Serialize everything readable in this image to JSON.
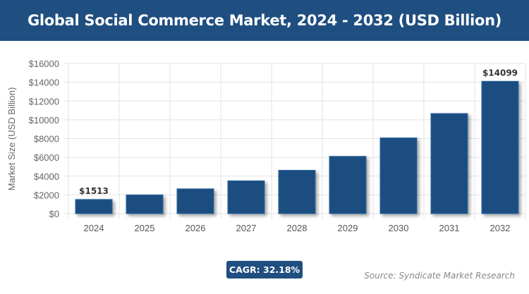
{
  "title": "Global Social Commerce Market, 2024 - 2032 (USD Billion)",
  "cagr_label": "CAGR: 32.18%",
  "source": "Source: Syndicate Market Research",
  "colors": {
    "bar": "#1f4e80",
    "header": "#1f4e80"
  },
  "chart_data": {
    "type": "bar",
    "title": "Global Social Commerce Market, 2024 - 2032 (USD Billion)",
    "xlabel": "",
    "ylabel": "Market Size (USD Billion)",
    "categories": [
      "2024",
      "2025",
      "2026",
      "2027",
      "2028",
      "2029",
      "2030",
      "2031",
      "2032"
    ],
    "values": [
      1513,
      2000,
      2643,
      3494,
      4619,
      6105,
      8070,
      10667,
      14099
    ],
    "data_labels": {
      "0": "$1513",
      "8": "$14099"
    },
    "ylim": [
      0,
      16000
    ],
    "yticks": [
      0,
      2000,
      4000,
      6000,
      8000,
      10000,
      12000,
      14000,
      16000
    ],
    "ytick_labels": [
      "$0",
      "$2000",
      "$4000",
      "$6000",
      "$8000",
      "$10000",
      "$12000",
      "$14000",
      "$16000"
    ],
    "grid": true
  }
}
